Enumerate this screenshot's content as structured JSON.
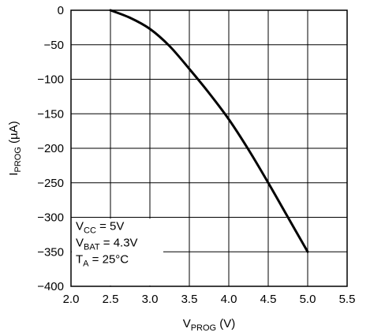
{
  "chart_data": {
    "type": "line",
    "x_axis": {
      "label_main": "V",
      "label_sub": "PROG",
      "label_unit": " (V)",
      "min": 2.0,
      "max": 5.5,
      "ticks": [
        "2.0",
        "2.5",
        "3.0",
        "3.5",
        "4.0",
        "4.5",
        "5.0",
        "5.5"
      ]
    },
    "y_axis": {
      "label_main": "I",
      "label_sub": "PROG",
      "label_unit": " (µA)",
      "min": -400,
      "max": 0,
      "ticks": [
        "0",
        "−50",
        "−100",
        "−150",
        "−200",
        "−250",
        "−300",
        "−350",
        "−400"
      ]
    },
    "grid": true,
    "series": [
      {
        "color": "#000000",
        "x": [
          2.5,
          2.75,
          3.0,
          3.25,
          3.5,
          3.75,
          4.0,
          4.25,
          4.5,
          4.75,
          5.0
        ],
        "y": [
          0,
          -11,
          -27,
          -52,
          -85,
          -120,
          -158,
          -202,
          -250,
          -300,
          -350
        ]
      }
    ],
    "conditions": [
      {
        "main": "V",
        "sub": "CC",
        "rest": " = 5V"
      },
      {
        "main": "V",
        "sub": "BAT",
        "rest": " = 4.3V"
      },
      {
        "main": "T",
        "sub": "A",
        "rest": " = 25°C"
      }
    ],
    "conditions_placement": "bottom-left"
  }
}
